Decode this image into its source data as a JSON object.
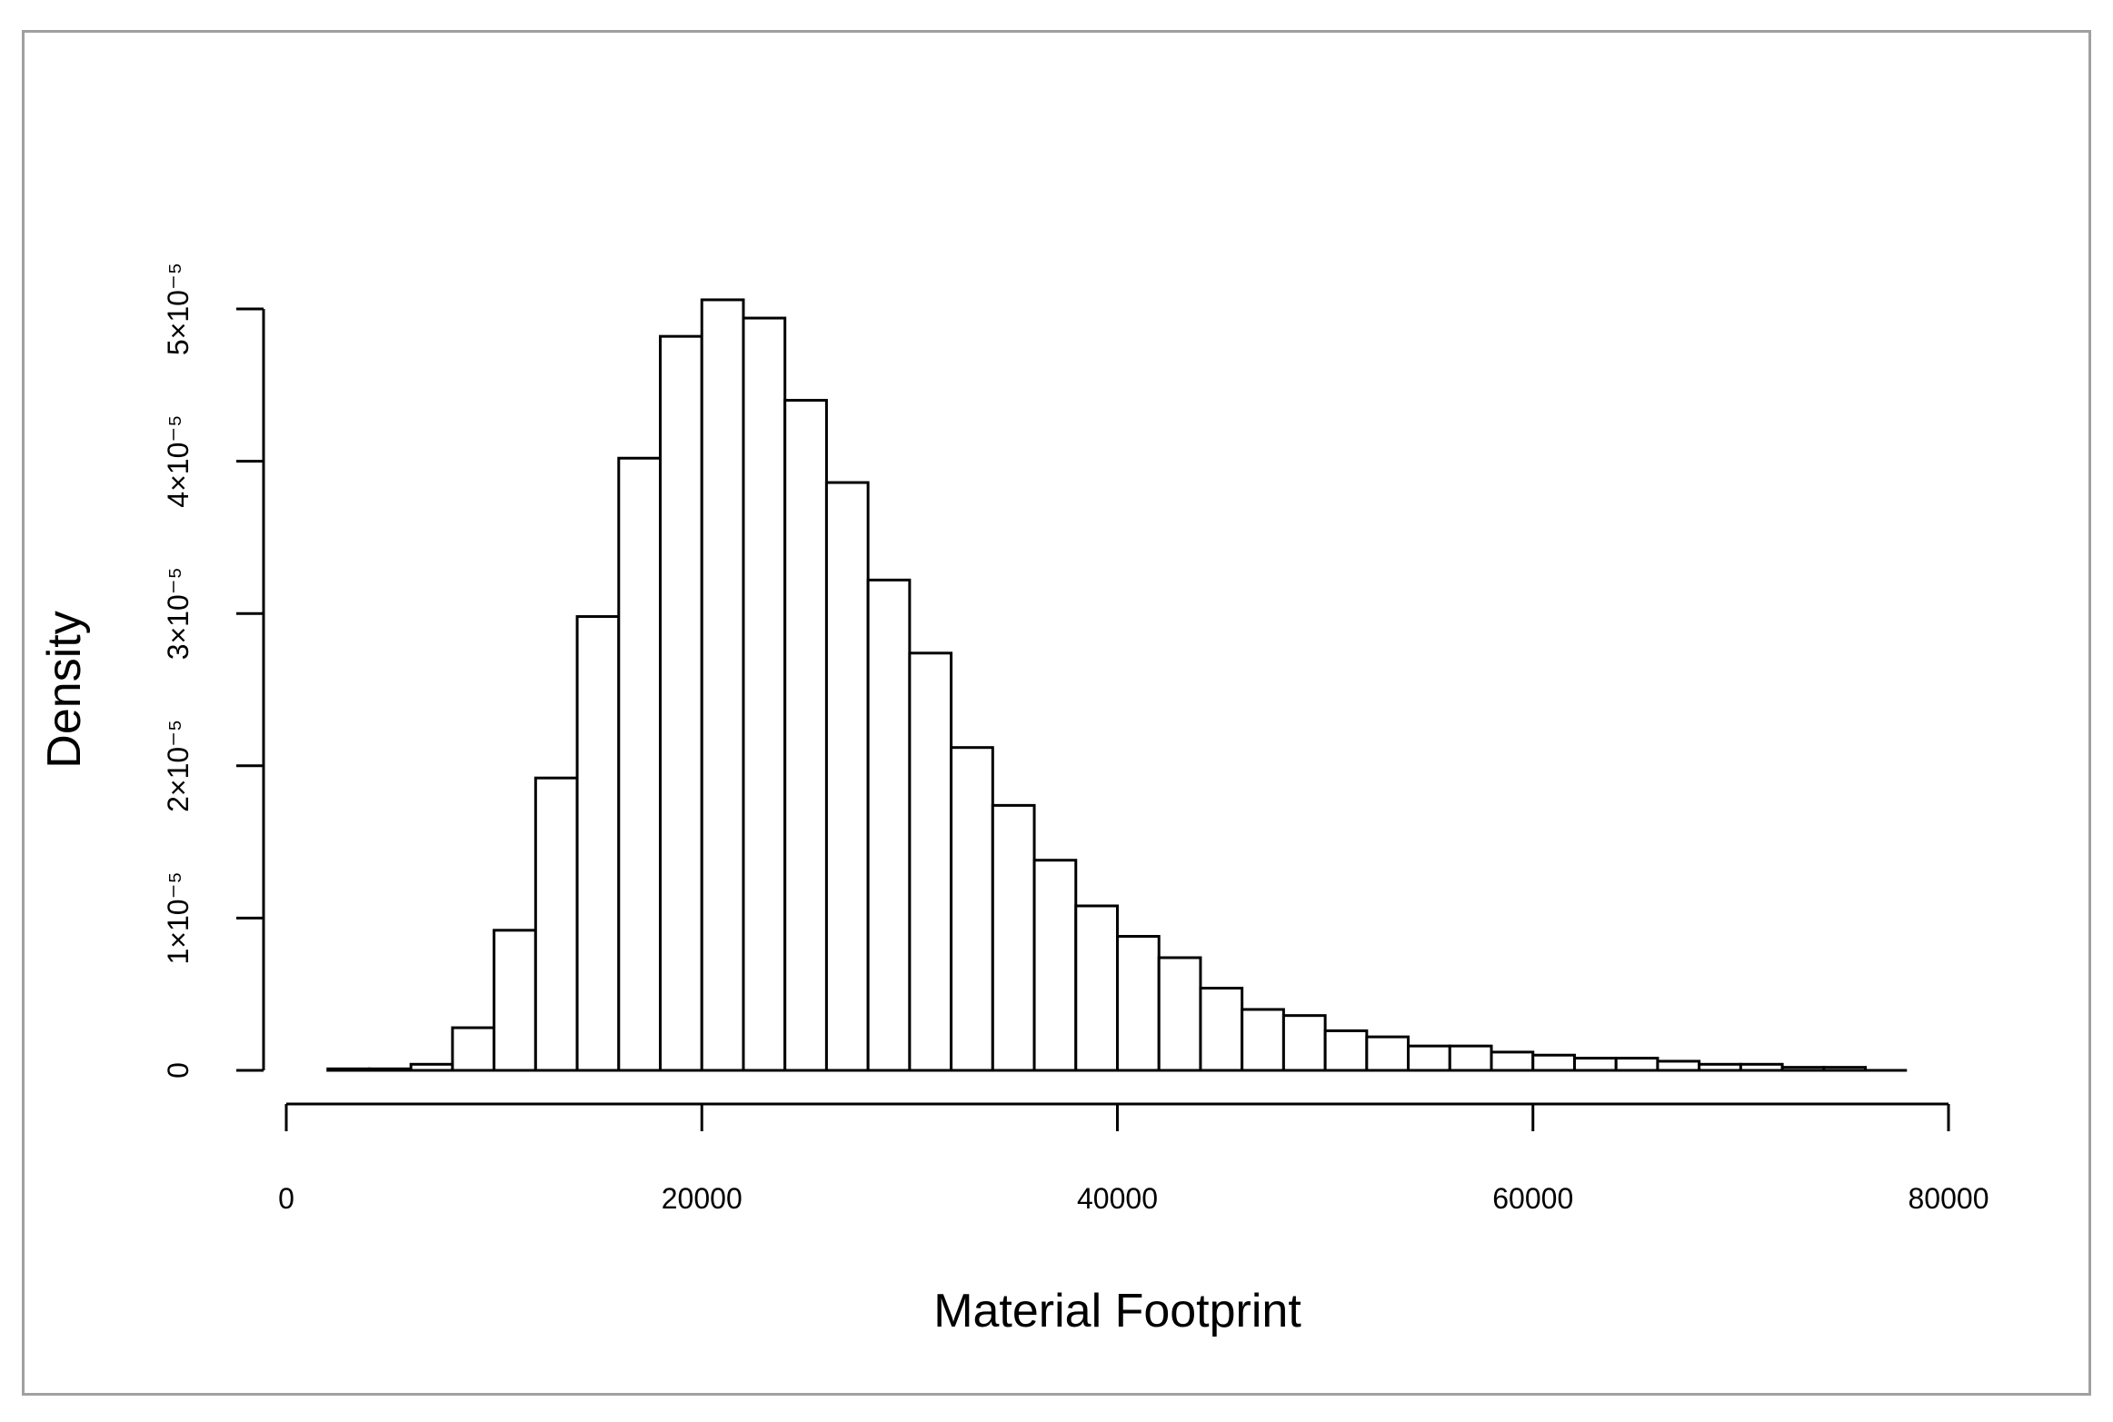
{
  "chart_data": {
    "type": "bar",
    "subtype": "histogram",
    "title": "",
    "xlabel": "Material Footprint",
    "ylabel": "Density",
    "xlim": [
      0,
      80000
    ],
    "ylim": [
      0,
      5e-05
    ],
    "bin_width": 2000,
    "bin_start": 2000,
    "bin_end": 76000,
    "densities": [
      1e-07,
      1e-07,
      4e-07,
      2.8e-06,
      9.2e-06,
      1.92e-05,
      2.98e-05,
      4.02e-05,
      4.82e-05,
      5.06e-05,
      4.94e-05,
      4.4e-05,
      3.86e-05,
      3.22e-05,
      2.74e-05,
      2.12e-05,
      1.74e-05,
      1.38e-05,
      1.08e-05,
      8.8e-06,
      7.4e-06,
      5.4e-06,
      4e-06,
      3.6e-06,
      2.6e-06,
      2.2e-06,
      1.6e-06,
      1.6e-06,
      1.2e-06,
      1e-06,
      8e-07,
      8e-07,
      6e-07,
      4e-07,
      4e-07,
      2e-07,
      2e-07
    ],
    "x_ticks": [
      0,
      20000,
      40000,
      60000,
      80000
    ],
    "x_tick_labels": [
      "0",
      "20000",
      "40000",
      "60000",
      "80000"
    ],
    "y_ticks": [
      0,
      1e-05,
      2e-05,
      3e-05,
      4e-05,
      5e-05
    ],
    "y_tick_labels": [
      "0",
      "1×10⁻⁵",
      "2×10⁻⁵",
      "3×10⁻⁵",
      "4×10⁻⁵",
      "5×10⁻⁵"
    ],
    "grid": false,
    "legend": "none",
    "bar_fill": "#ffffff",
    "bar_stroke": "#000000",
    "frame_color": "#a0a0a0"
  }
}
